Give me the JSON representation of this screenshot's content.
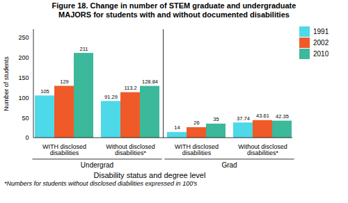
{
  "chart_data": {
    "type": "bar",
    "title": "Figure 18. Change in number of STEM graduate and undergraduate",
    "subtitle": "MAJORS for students with and without documented disabilities",
    "categories": [
      "WITH disclosed\ndisabilities",
      "Without disclosed\ndisabilities*",
      "WITH disclosed\ndisabilities",
      "Without disclosed\ndisabilities*"
    ],
    "sections": [
      "Undergrad",
      "Undergrad",
      "Grad",
      "Grad"
    ],
    "series": [
      {
        "name": "1991",
        "color": "#4DD9E8",
        "values": [
          105,
          91.29,
          14,
          37.74
        ]
      },
      {
        "name": "2002",
        "color": "#F05A28",
        "values": [
          129,
          113.2,
          26,
          43.61
        ]
      },
      {
        "name": "2010",
        "color": "#3CB89A",
        "values": [
          211,
          128.84,
          35,
          42.35
        ]
      }
    ],
    "ylabel": "Number of students",
    "xlabel": "Disability status and degree level",
    "ylim": [
      0,
      270
    ],
    "yticks": [
      0,
      50,
      100,
      150,
      200,
      250
    ],
    "data_labels": true,
    "grid": false,
    "legend": "upper right",
    "caption": "*Numbers for students without disclosed diabilities expressed in 100's"
  }
}
